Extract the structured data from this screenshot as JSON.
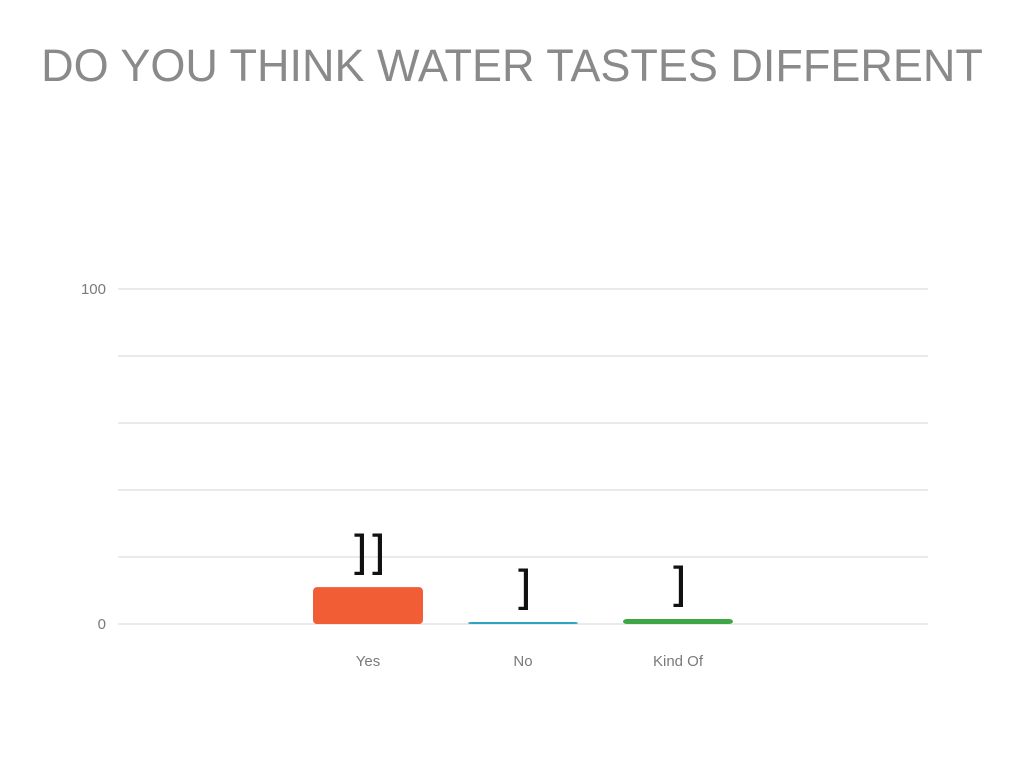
{
  "slide": {
    "title": "DO YOU THINK WATER TASTES DIFFERENT"
  },
  "chart_data": {
    "type": "bar",
    "title": "DO YOU THINK WATER TASTES DIFFERENT",
    "categories": [
      "Yes",
      "No",
      "Kind Of"
    ],
    "values": [
      11,
      0.5,
      1.5
    ],
    "colors": [
      "#f15d34",
      "#2ea3c0",
      "#3fa645"
    ],
    "ylim": [
      0,
      100
    ],
    "yticks": [
      0,
      20,
      40,
      60,
      80,
      100
    ],
    "ytick_labels": [
      "0",
      "",
      "",
      "",
      "",
      "100"
    ],
    "grid": true,
    "legend": "none",
    "annotations": [
      "]]",
      "]",
      "]"
    ]
  }
}
